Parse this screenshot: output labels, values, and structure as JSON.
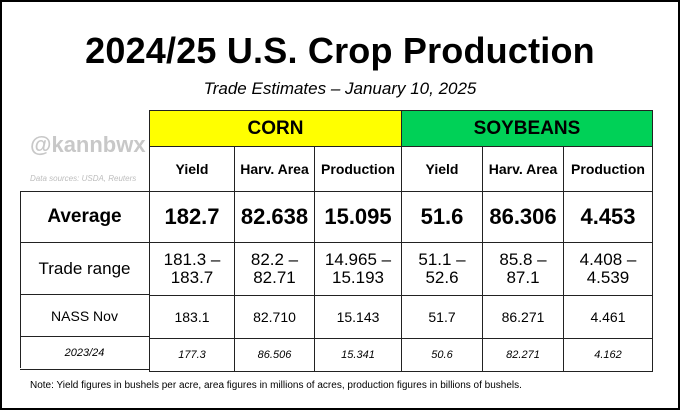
{
  "title": "2024/25 U.S. Crop Production",
  "subtitle": "Trade Estimates – January 10, 2025",
  "handle": "@kannbwx",
  "sources": "Data sources: USDA, Reuters",
  "crops": [
    "CORN",
    "SOYBEANS"
  ],
  "colors": {
    "corn": "#ffff00",
    "soybeans": "#00d157"
  },
  "columns": [
    "Yield",
    "Harv. Area",
    "Production",
    "Yield",
    "Harv. Area",
    "Production"
  ],
  "rows": [
    {
      "label": "Average",
      "values": [
        "182.7",
        "82.638",
        "15.095",
        "51.6",
        "86.306",
        "4.453"
      ]
    },
    {
      "label": "Trade range",
      "values": [
        [
          "181.3 –",
          "183.7"
        ],
        [
          "82.2 –",
          "82.71"
        ],
        [
          "14.965 –",
          "15.193"
        ],
        [
          "51.1 –",
          "52.6"
        ],
        [
          "85.8 –",
          "87.1"
        ],
        [
          "4.408 –",
          "4.539"
        ]
      ]
    },
    {
      "label": "NASS Nov",
      "values": [
        "183.1",
        "82.710",
        "15.143",
        "51.7",
        "86.271",
        "4.461"
      ]
    },
    {
      "label": "2023/24",
      "values": [
        "177.3",
        "86.506",
        "15.341",
        "50.6",
        "82.271",
        "4.162"
      ]
    }
  ],
  "note": "Note: Yield figures in bushels per acre, area figures in millions of acres, production figures in billions of bushels."
}
